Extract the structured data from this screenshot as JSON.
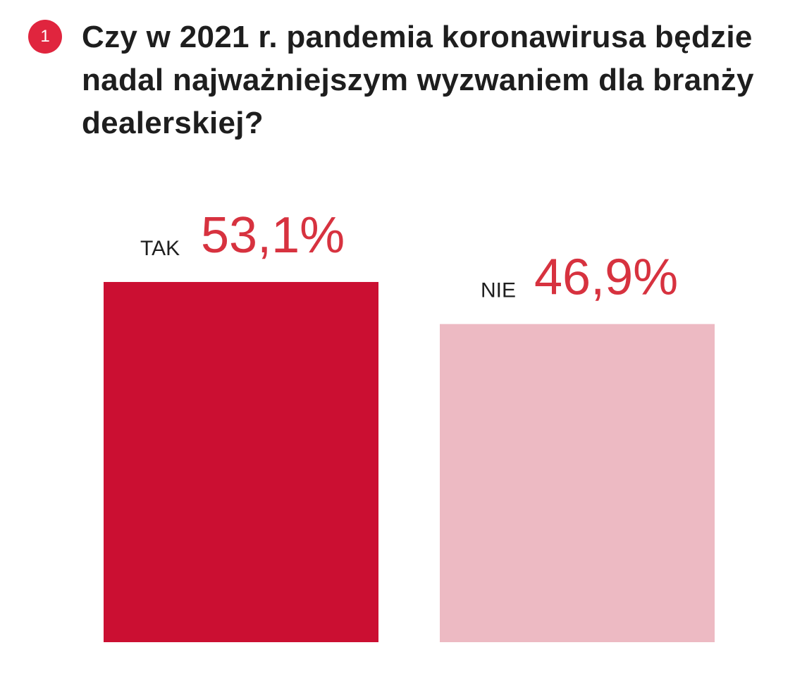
{
  "question": {
    "number": "1",
    "title": "Czy w 2021 r. pandemia koronawirusa będzie nadal najważniejszym wyzwaniem dla branży dealerskiej?"
  },
  "colors": {
    "badge": "#e0253e",
    "bar_tak": "#cb0f32",
    "bar_nie": "#edbac3",
    "value_text": "#d7323f",
    "text": "#1e1e1e"
  },
  "chart_data": {
    "type": "bar",
    "categories": [
      "TAK",
      "NIE"
    ],
    "values": [
      53.1,
      46.9
    ],
    "value_labels": [
      "53,1%",
      "46,9%"
    ],
    "unit": "%",
    "title": "Czy w 2021 r. pandemia koronawirusa będzie nadal najważniejszym wyzwaniem dla branży dealerskiej?",
    "xlabel": "",
    "ylabel": "",
    "grid": false,
    "legend": "none"
  }
}
